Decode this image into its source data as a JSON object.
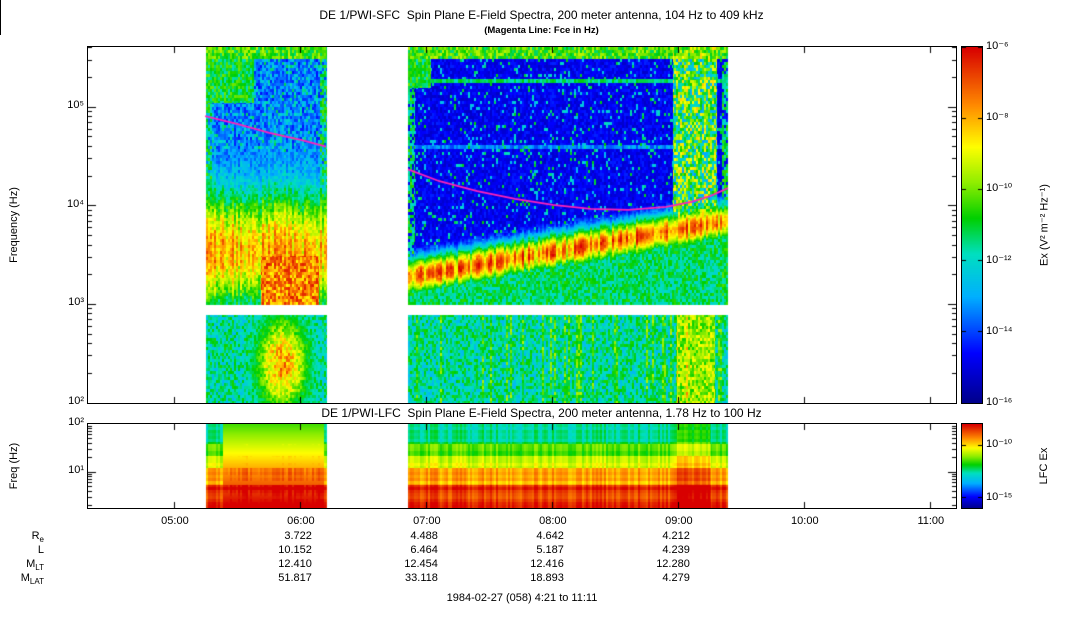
{
  "footer": "1984-02-27 (058) 4:21 to 11:11",
  "colormap": {
    "description": "rainbow spectrogram palette, low value to high value",
    "stops": [
      {
        "v": 0.0,
        "color": "#00008a"
      },
      {
        "v": 0.14,
        "color": "#0000ff"
      },
      {
        "v": 0.3,
        "color": "#00b0ff"
      },
      {
        "v": 0.42,
        "color": "#00e0c0"
      },
      {
        "v": 0.52,
        "color": "#00d000"
      },
      {
        "v": 0.62,
        "color": "#90ee00"
      },
      {
        "v": 0.72,
        "color": "#ffff00"
      },
      {
        "v": 0.84,
        "color": "#ff8800"
      },
      {
        "v": 1.0,
        "color": "#d80000"
      }
    ]
  },
  "chart_data": [
    {
      "type": "heatmap",
      "name": "sfc-spectrogram",
      "title": "DE 1/PWI-SFC  Spin Plane E-Field Spectra, 200 meter antenna, 104 Hz to 409 kHz",
      "subtitle": "(Magenta Line: Fce in Hz)",
      "ylabel": "Frequency (Hz)",
      "y_scale": "log",
      "y_range_hz": [
        100,
        409000
      ],
      "y_ticks": [
        {
          "log": 5,
          "label": "10⁵"
        },
        {
          "log": 4,
          "label": "10⁴"
        },
        {
          "log": 3,
          "label": "10³"
        },
        {
          "log": 2,
          "label": "10²"
        }
      ],
      "x_range_hours": [
        4.31,
        11.2
      ],
      "x_ticks": [
        {
          "hour": 5,
          "label": "05:00"
        },
        {
          "hour": 6,
          "label": "06:00"
        },
        {
          "hour": 7,
          "label": "07:00"
        },
        {
          "hour": 8,
          "label": "08:00"
        },
        {
          "hour": 9,
          "label": "09:00"
        },
        {
          "hour": 10,
          "label": "10:00"
        },
        {
          "hour": 11,
          "label": "11:00"
        }
      ],
      "data_segments_hours": [
        [
          5.24,
          6.2
        ],
        [
          6.85,
          9.39
        ]
      ],
      "receiver_gap_log_hz": [
        2.9,
        3.0
      ],
      "colorbar": {
        "label": "Ex (V² m⁻² Hz⁻¹)",
        "log_range": [
          -16,
          -6
        ],
        "ticks": [
          {
            "log": -6,
            "label": "10⁻⁶"
          },
          {
            "log": -8,
            "label": "10⁻⁸"
          },
          {
            "log": -10,
            "label": "10⁻¹⁰"
          },
          {
            "log": -12,
            "label": "10⁻¹²"
          },
          {
            "log": -14,
            "label": "10⁻¹⁴"
          },
          {
            "log": -16,
            "label": "10⁻¹⁶"
          }
        ]
      },
      "fce_line": {
        "color": "#ff22bb",
        "meaning": "Fce in Hz",
        "segments_hour_loghz": [
          [
            [
              5.24,
              4.91
            ],
            [
              5.5,
              4.83
            ],
            [
              5.75,
              4.74
            ],
            [
              6.0,
              4.67
            ],
            [
              6.2,
              4.6
            ]
          ],
          [
            [
              6.85,
              4.37
            ],
            [
              7.1,
              4.25
            ],
            [
              7.4,
              4.15
            ],
            [
              7.7,
              4.07
            ],
            [
              8.0,
              4.01
            ],
            [
              8.3,
              3.97
            ],
            [
              8.6,
              3.96
            ],
            [
              8.9,
              3.99
            ],
            [
              9.1,
              4.04
            ],
            [
              9.25,
              4.1
            ],
            [
              9.39,
              4.18
            ]
          ]
        ]
      },
      "features": {
        "background_level": 0.08,
        "top_edge_band": {
          "log_hz_min": 5.5,
          "level": 0.45
        },
        "seg1_emission": {
          "log_hz_center": 3.55,
          "log_hz_sigma": 0.6,
          "level": 0.62
        },
        "seg1_hot_patch": {
          "hours": [
            5.68,
            6.14
          ],
          "log_hz_max": 3.5,
          "level": 0.72
        },
        "seg2_rising_band": {
          "log_hz_start": 3.28,
          "log_hz_end": 3.85,
          "sigma": 0.2,
          "level": 0.65
        },
        "seg2_floor_level": 0.38,
        "seg2_burst": {
          "hours": [
            8.95,
            9.3
          ],
          "log_hz_min": 3.8,
          "level": 0.5
        },
        "low_band_level": 0.32,
        "low_band_hot": {
          "hours": [
            5.5,
            6.17
          ],
          "center_hour": 5.85,
          "level": 0.85
        }
      }
    },
    {
      "type": "heatmap",
      "name": "lfc-spectrogram",
      "title": "DE 1/PWI-LFC  Spin Plane E-Field Spectra, 200 meter antenna, 1.78 Hz to 100 Hz",
      "ylabel": "Freq (Hz)",
      "y_scale": "log",
      "y_range_hz": [
        1.78,
        100
      ],
      "y_ticks": [
        {
          "log": 2,
          "label": "10²"
        },
        {
          "log": 1,
          "label": "10¹"
        }
      ],
      "x_range_hours": [
        4.31,
        11.2
      ],
      "data_segments_hours": [
        [
          5.24,
          6.2
        ],
        [
          6.85,
          9.39
        ]
      ],
      "colorbar": {
        "label": "LFC Ex",
        "log_range": [
          -16,
          -8
        ],
        "ticks": [
          {
            "log": -10,
            "label": "10⁻¹⁰"
          },
          {
            "log": -15,
            "label": "10⁻¹⁵"
          }
        ]
      },
      "features": {
        "bands": [
          {
            "log_hz": [
              0.25,
              0.75
            ],
            "level": 0.95
          },
          {
            "log_hz": [
              0.75,
              1.1
            ],
            "level": 0.82
          },
          {
            "log_hz": [
              1.1,
              1.35
            ],
            "level": 0.68
          },
          {
            "log_hz": [
              1.35,
              1.6
            ],
            "level": 0.56
          },
          {
            "log_hz": [
              1.6,
              2.01
            ],
            "level": 0.46
          }
        ],
        "intense_interval": {
          "hours": [
            5.38,
            6.18
          ],
          "level": 0.97
        },
        "late_burst": {
          "hours": [
            8.98,
            9.25
          ],
          "boost": 0.08
        }
      }
    }
  ],
  "ephemeris": {
    "column_hours": [
      6,
      7,
      8,
      9
    ],
    "rows": [
      {
        "label_main": "R",
        "label_sub": "e",
        "values": [
          "3.722",
          "4.488",
          "4.642",
          "4.212"
        ]
      },
      {
        "label_main": "L",
        "label_sub": "",
        "values": [
          "10.152",
          "6.464",
          "5.187",
          "4.239"
        ]
      },
      {
        "label_main": "M",
        "label_sub": "LT",
        "values": [
          "12.410",
          "12.454",
          "12.416",
          "12.280"
        ]
      },
      {
        "label_main": "M",
        "label_sub": "LAT",
        "values": [
          "51.817",
          "33.118",
          "18.893",
          "4.279"
        ]
      }
    ]
  }
}
